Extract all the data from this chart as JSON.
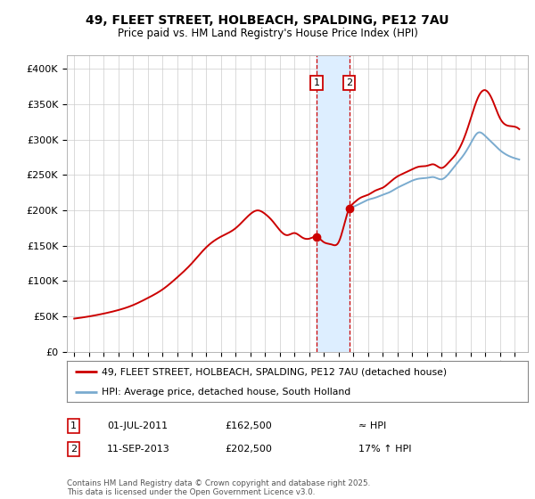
{
  "title1": "49, FLEET STREET, HOLBEACH, SPALDING, PE12 7AU",
  "title2": "Price paid vs. HM Land Registry's House Price Index (HPI)",
  "ytick_values": [
    0,
    50000,
    100000,
    150000,
    200000,
    250000,
    300000,
    350000,
    400000
  ],
  "ylim": [
    0,
    420000
  ],
  "legend_line1": "49, FLEET STREET, HOLBEACH, SPALDING, PE12 7AU (detached house)",
  "legend_line2": "HPI: Average price, detached house, South Holland",
  "transaction1_date": "01-JUL-2011",
  "transaction1_price": "£162,500",
  "transaction1_hpi": "≈ HPI",
  "transaction2_date": "11-SEP-2013",
  "transaction2_price": "£202,500",
  "transaction2_hpi": "17% ↑ HPI",
  "transaction1_x": 2011.5,
  "transaction2_x": 2013.72,
  "transaction1_price_val": 162500,
  "transaction2_price_val": 202500,
  "footer": "Contains HM Land Registry data © Crown copyright and database right 2025.\nThis data is licensed under the Open Government Licence v3.0.",
  "red_color": "#cc0000",
  "blue_color": "#7aabcf",
  "shading_color": "#ddeeff",
  "xlim_left": 1994.5,
  "xlim_right": 2025.9
}
